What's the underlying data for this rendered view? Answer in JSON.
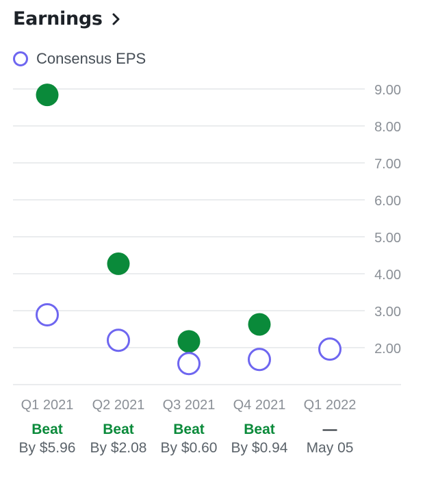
{
  "header": {
    "title": "Earnings",
    "chevron_icon": "chevron-right-icon"
  },
  "legend": {
    "label": "Consensus EPS",
    "color": "#6e66f0"
  },
  "colors": {
    "actual": "#0a8a3a",
    "estimate": "#6e66f0",
    "beat_text": "#0a8a3a",
    "grid": "#e3e5e8",
    "tick_text": "#8a8f96"
  },
  "chart_data": {
    "type": "scatter",
    "title": "",
    "xlabel": "",
    "ylabel": "",
    "categories": [
      "Q1 2021",
      "Q2 2021",
      "Q3 2021",
      "Q4 2021",
      "Q1 2022"
    ],
    "y_ticks": [
      "9.00",
      "8.00",
      "7.00",
      "6.00",
      "5.00",
      "4.00",
      "3.00",
      "2.00"
    ],
    "ylim": [
      1,
      9.2
    ],
    "grid": true,
    "series": [
      {
        "name": "",
        "role": "actual",
        "values": [
          8.84,
          4.27,
          2.17,
          2.63,
          null
        ]
      },
      {
        "name": "Consensus EPS",
        "role": "estimate",
        "values": [
          2.89,
          2.2,
          1.57,
          1.68,
          1.96
        ]
      }
    ],
    "results": [
      "Beat",
      "Beat",
      "Beat",
      "Beat",
      "—"
    ],
    "details": [
      "By $5.96",
      "By $2.08",
      "By $0.60",
      "By $0.94",
      "May 05"
    ]
  }
}
